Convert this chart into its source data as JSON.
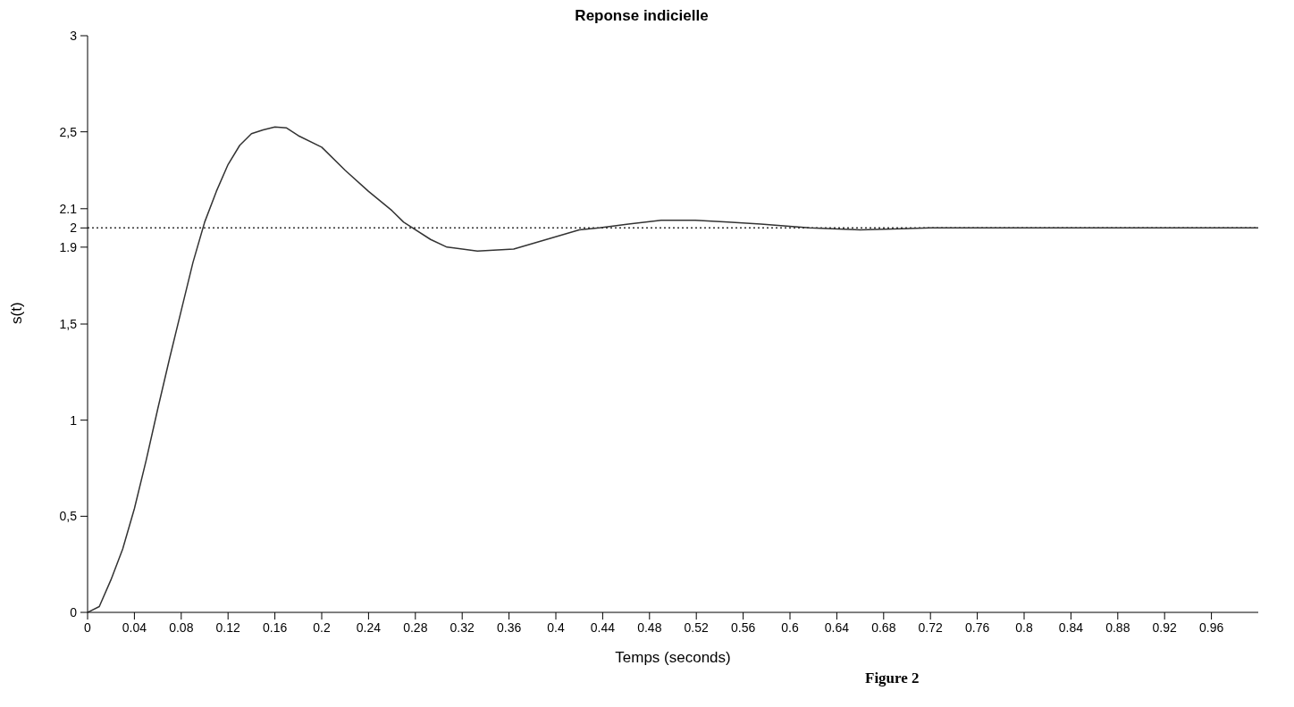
{
  "chart_data": {
    "type": "line",
    "title": "Reponse indicielle",
    "xlabel": "Temps (seconds)",
    "ylabel": "s(t)",
    "annotations": [
      "Figure 2"
    ],
    "x": [
      0,
      0.01,
      0.02,
      0.03,
      0.04,
      0.05,
      0.06,
      0.07,
      0.08,
      0.09,
      0.1,
      0.11,
      0.12,
      0.13,
      0.14,
      0.15,
      0.16,
      0.17,
      0.18,
      0.2,
      0.22,
      0.24,
      0.26,
      0.27,
      0.293,
      0.307,
      0.333,
      0.364,
      0.392,
      0.42,
      0.437,
      0.462,
      0.49,
      0.519,
      0.547,
      0.575,
      0.617,
      0.66,
      0.72,
      0.8,
      0.9,
      1
    ],
    "values": [
      0,
      0.03,
      0.17,
      0.33,
      0.54,
      0.79,
      1.06,
      1.32,
      1.57,
      1.82,
      2.03,
      2.19,
      2.33,
      2.43,
      2.49,
      2.51,
      2.525,
      2.52,
      2.48,
      2.42,
      2.3,
      2.19,
      2.09,
      2.03,
      1.94,
      1.9,
      1.88,
      1.89,
      1.94,
      1.99,
      2,
      2.02,
      2.04,
      2.04,
      2.03,
      2.02,
      2,
      1.99,
      2,
      2,
      2,
      2
    ],
    "color": "#333333",
    "line_style": "solid",
    "xlim": [
      0,
      1
    ],
    "xticks": [
      0,
      0.04,
      0.08,
      0.12,
      0.16,
      0.2,
      0.24,
      0.28,
      0.32,
      0.36,
      0.4,
      0.44,
      0.48,
      0.52,
      0.56,
      0.6,
      0.64,
      0.68,
      0.72,
      0.76,
      0.8,
      0.84,
      0.88,
      0.92,
      0.96
    ],
    "ylim": [
      0,
      3
    ],
    "yticks": [
      0,
      {
        "value": 0.5,
        "label": "0,5"
      },
      1,
      {
        "value": 1.5,
        "label": "1,5"
      },
      1.9,
      2,
      2.1,
      {
        "value": 2.5,
        "label": "2,5"
      },
      3
    ],
    "ref_lines": [
      {
        "axis": "y",
        "value": 2,
        "line_style": "dotted",
        "color": "#333333"
      }
    ]
  }
}
